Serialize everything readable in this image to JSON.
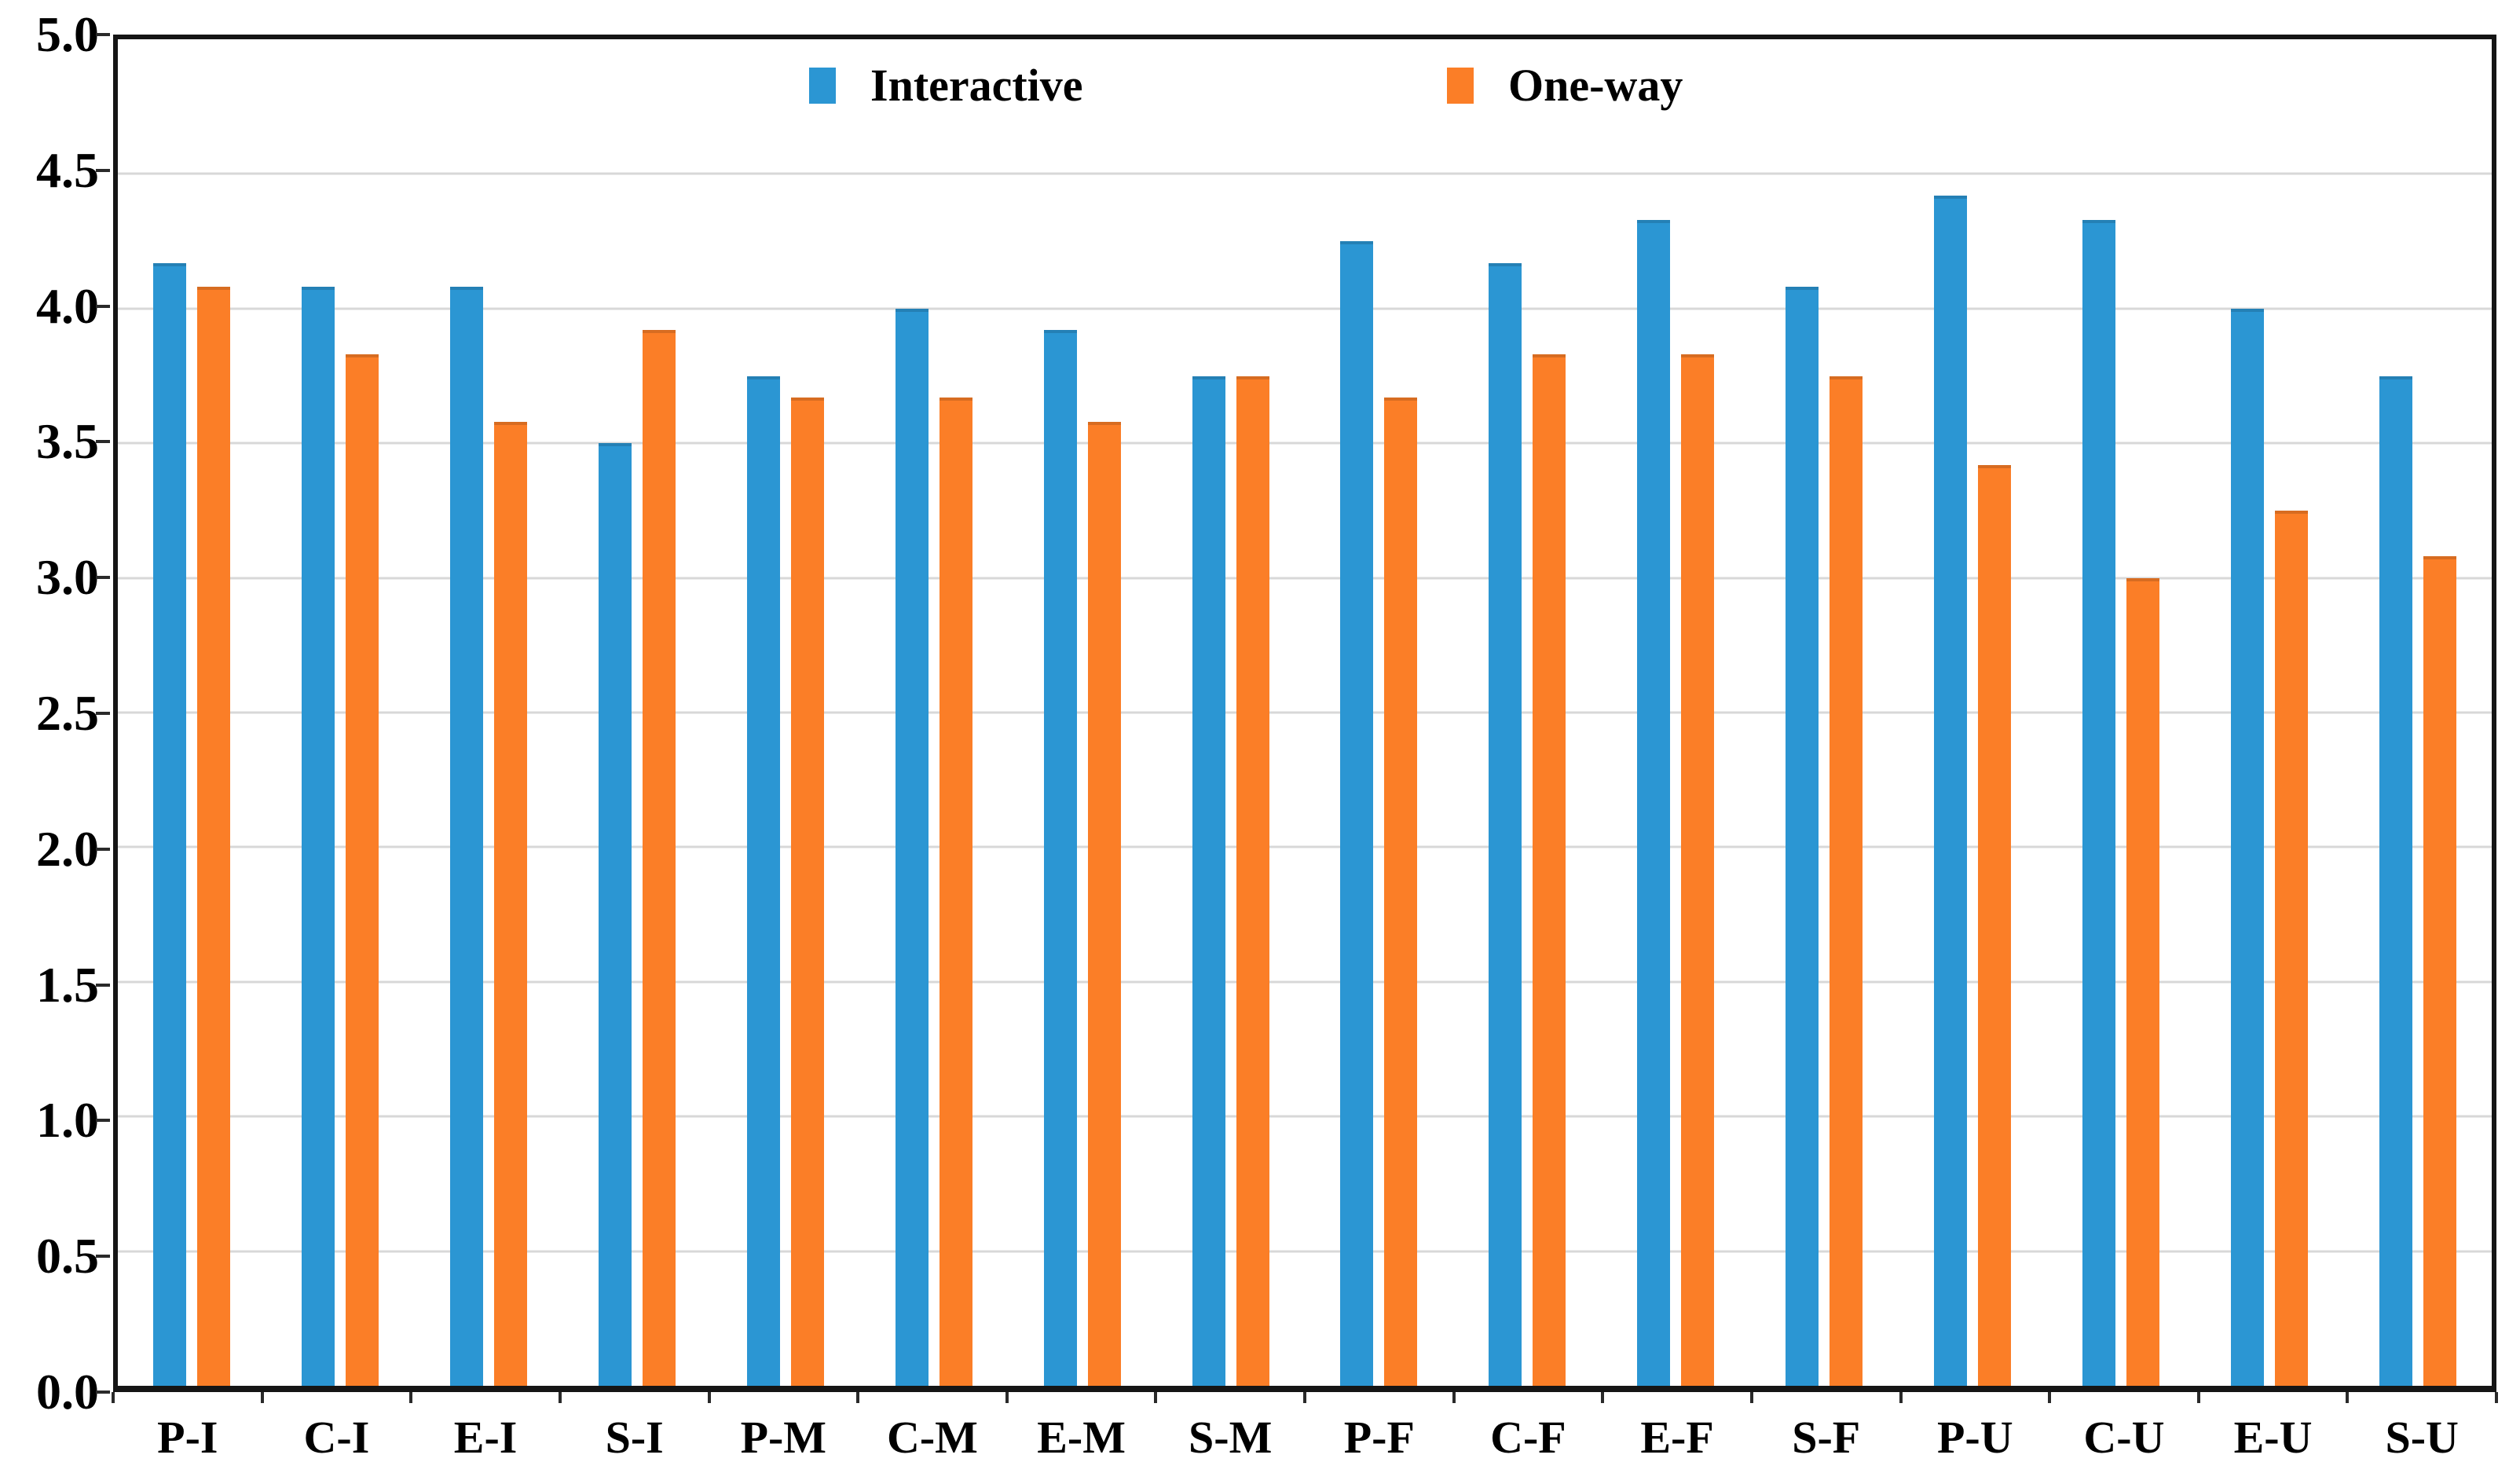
{
  "chart_data": {
    "type": "bar",
    "title": "",
    "xlabel": "",
    "ylabel": "",
    "categories": [
      "P-I",
      "C-I",
      "E-I",
      "S-I",
      "P-M",
      "C-M",
      "E-M",
      "S-M",
      "P-F",
      "C-F",
      "E-F",
      "S-F",
      "P-U",
      "C-U",
      "E-U",
      "S-U"
    ],
    "series": [
      {
        "name": "Interactive",
        "color": "#2B96D3",
        "values": [
          4.17,
          4.08,
          4.08,
          3.5,
          3.75,
          4.0,
          3.92,
          3.75,
          4.25,
          4.17,
          4.33,
          4.08,
          4.42,
          4.33,
          4.0,
          3.75
        ]
      },
      {
        "name": "One-way",
        "color": "#FB7E27",
        "values": [
          4.08,
          3.83,
          3.58,
          3.92,
          3.67,
          3.67,
          3.58,
          3.75,
          3.67,
          3.83,
          3.83,
          3.75,
          3.42,
          3.0,
          3.25,
          3.08
        ]
      }
    ],
    "ylim": [
      0,
      5
    ],
    "ytick_step": 0.5,
    "ytick_labels": [
      "0.0",
      "0.5",
      "1.0",
      "1.5",
      "2.0",
      "2.5",
      "3.0",
      "3.5",
      "4.0",
      "4.5",
      "5.0"
    ],
    "grid": true,
    "legend_position": "top-center-inside",
    "colors": {
      "gridline": "#d8d8d8",
      "axis": "#151515",
      "background": "#ffffff",
      "text": "#000000"
    }
  }
}
